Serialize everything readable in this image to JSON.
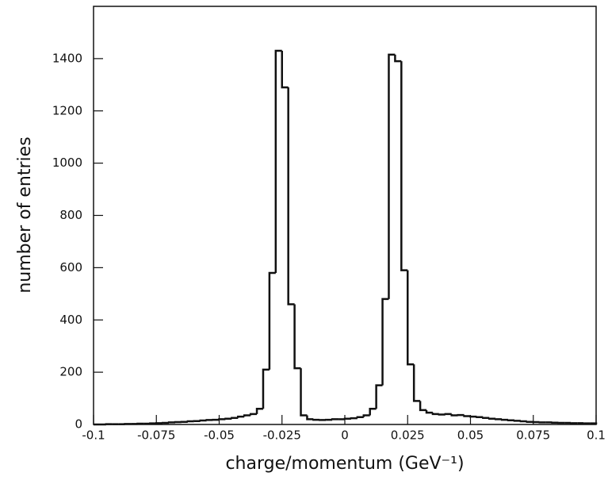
{
  "chart_data": {
    "type": "histogram",
    "x_label": "charge/momentum (GeV⁻¹)",
    "y_label": "number of entries",
    "bins": [
      -0.1,
      -0.0975,
      -0.095,
      -0.0925,
      -0.09,
      -0.0875,
      -0.085,
      -0.0825,
      -0.08,
      -0.0775,
      -0.075,
      -0.0725,
      -0.07,
      -0.0675,
      -0.065,
      -0.0625,
      -0.06,
      -0.0575,
      -0.055,
      -0.0525,
      -0.05,
      -0.0475,
      -0.045,
      -0.0425,
      -0.04,
      -0.0375,
      -0.035,
      -0.0325,
      -0.03,
      -0.0275,
      -0.025,
      -0.0225,
      -0.02,
      -0.0175,
      -0.015,
      -0.0125,
      -0.01,
      -0.0075,
      -0.005,
      -0.0025,
      0,
      0.0025,
      0.005,
      0.0075,
      0.01,
      0.0125,
      0.015,
      0.0175,
      0.02,
      0.0225,
      0.025,
      0.0275,
      0.03,
      0.0325,
      0.035,
      0.0375,
      0.04,
      0.0425,
      0.045,
      0.0475,
      0.05,
      0.0525,
      0.055,
      0.0575,
      0.06,
      0.0625,
      0.065,
      0.0675,
      0.07,
      0.0725,
      0.075,
      0.0775,
      0.08,
      0.0825,
      0.085,
      0.0875,
      0.09,
      0.0925,
      0.095,
      0.0975,
      0.1
    ],
    "values": [
      0,
      0,
      1,
      1,
      1,
      2,
      2,
      3,
      3,
      4,
      5,
      6,
      8,
      9,
      10,
      12,
      13,
      15,
      17,
      18,
      20,
      22,
      25,
      30,
      35,
      40,
      60,
      210,
      580,
      1430,
      1290,
      460,
      215,
      35,
      20,
      18,
      17,
      18,
      20,
      20,
      22,
      24,
      28,
      35,
      60,
      150,
      480,
      1415,
      1390,
      590,
      230,
      90,
      55,
      45,
      40,
      38,
      40,
      35,
      36,
      32,
      30,
      28,
      25,
      22,
      20,
      18,
      16,
      14,
      12,
      10,
      9,
      8,
      8,
      7,
      6,
      6,
      5,
      5,
      4,
      4
    ],
    "color": "#111111",
    "xlim": [
      -0.1,
      0.1
    ],
    "ylim": [
      0,
      1600
    ],
    "xticks": [
      -0.1,
      -0.075,
      -0.05,
      -0.025,
      0,
      0.025,
      0.05,
      0.075,
      0.1
    ],
    "yticks": [
      0,
      200,
      400,
      600,
      800,
      1000,
      1200,
      1400
    ]
  }
}
